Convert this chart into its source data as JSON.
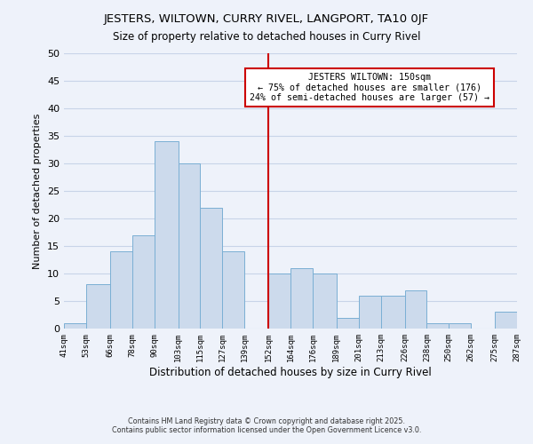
{
  "title": "JESTERS, WILTOWN, CURRY RIVEL, LANGPORT, TA10 0JF",
  "subtitle": "Size of property relative to detached houses in Curry Rivel",
  "xlabel": "Distribution of detached houses by size in Curry Rivel",
  "ylabel": "Number of detached properties",
  "bin_edges": [
    41,
    53,
    66,
    78,
    90,
    103,
    115,
    127,
    139,
    152,
    164,
    176,
    189,
    201,
    213,
    226,
    238,
    250,
    262,
    275,
    287
  ],
  "counts": [
    1,
    8,
    14,
    17,
    34,
    30,
    22,
    14,
    0,
    10,
    11,
    10,
    2,
    6,
    6,
    7,
    1,
    1,
    0,
    3
  ],
  "bar_color": "#ccdaec",
  "bar_edge_color": "#7aafd4",
  "grid_color": "#c8d4e8",
  "vline_x": 152,
  "vline_color": "#cc0000",
  "annotation_title": "JESTERS WILTOWN: 150sqm",
  "annotation_line1": "← 75% of detached houses are smaller (176)",
  "annotation_line2": "24% of semi-detached houses are larger (57) →",
  "annotation_box_facecolor": "#ffffff",
  "annotation_box_edgecolor": "#cc0000",
  "tick_labels": [
    "41sqm",
    "53sqm",
    "66sqm",
    "78sqm",
    "90sqm",
    "103sqm",
    "115sqm",
    "127sqm",
    "139sqm",
    "152sqm",
    "164sqm",
    "176sqm",
    "189sqm",
    "201sqm",
    "213sqm",
    "226sqm",
    "238sqm",
    "250sqm",
    "262sqm",
    "275sqm",
    "287sqm"
  ],
  "ylim": [
    0,
    50
  ],
  "yticks": [
    0,
    5,
    10,
    15,
    20,
    25,
    30,
    35,
    40,
    45,
    50
  ],
  "footer1": "Contains HM Land Registry data © Crown copyright and database right 2025.",
  "footer2": "Contains public sector information licensed under the Open Government Licence v3.0.",
  "bg_color": "#eef2fa",
  "plot_bg_color": "#eef2fa"
}
